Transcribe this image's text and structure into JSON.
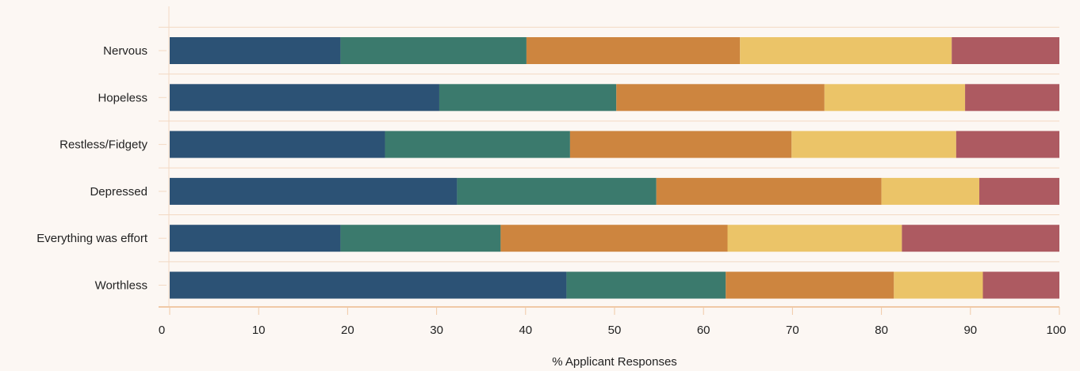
{
  "chart_data": {
    "type": "bar",
    "orientation": "horizontal",
    "stacked": true,
    "title": "",
    "xlabel": "% Applicant Responses",
    "ylabel": "",
    "xlim": [
      0,
      100
    ],
    "xticks": [
      0,
      10,
      20,
      30,
      40,
      50,
      60,
      70,
      80,
      90,
      100
    ],
    "grid": true,
    "legend": "none",
    "categories": [
      "Nervous",
      "Hopeless",
      "Restless/Fidgety",
      "Depressed",
      "Everything was effort",
      "Worthless"
    ],
    "series": [
      {
        "color": "#2c5275",
        "values": [
          19.2,
          30.3,
          24.2,
          32.3,
          19.2,
          44.6
        ]
      },
      {
        "color": "#3b7a6d",
        "values": [
          20.9,
          19.9,
          20.8,
          22.4,
          18.0,
          17.9
        ]
      },
      {
        "color": "#cd853f",
        "values": [
          24.0,
          23.4,
          24.9,
          25.3,
          25.5,
          18.9
        ]
      },
      {
        "color": "#ebc468",
        "values": [
          23.8,
          15.8,
          18.5,
          11.0,
          19.6,
          10.0
        ]
      },
      {
        "color": "#ad5a61",
        "values": [
          12.1,
          10.6,
          11.6,
          9.0,
          17.7,
          8.6
        ]
      }
    ]
  }
}
